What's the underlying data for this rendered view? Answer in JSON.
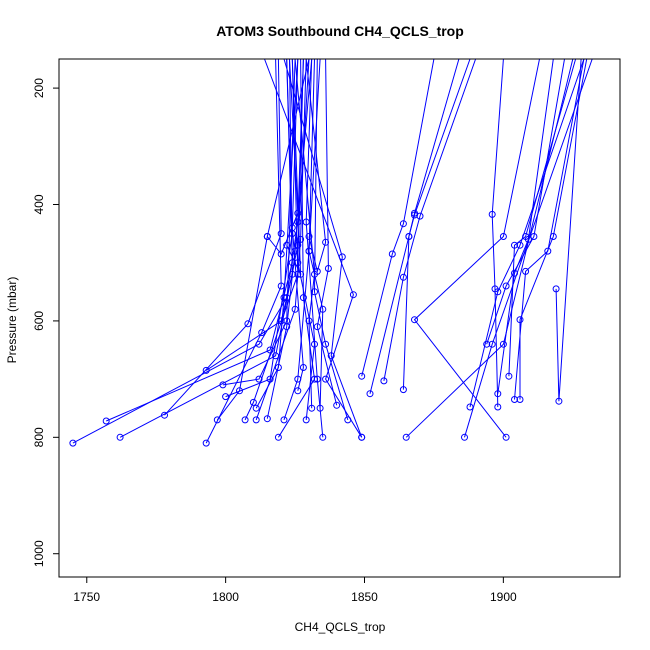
{
  "chart_data": {
    "type": "line",
    "title": "ATOM3 Southbound CH4_QCLS_trop",
    "xlabel": "CH4_QCLS_trop",
    "ylabel": "Pressure (mbar)",
    "xlim": [
      1740,
      1942
    ],
    "ylim": [
      1040,
      150
    ],
    "y_reversed": true,
    "x_ticks": [
      1750,
      1800,
      1850,
      1900
    ],
    "y_ticks": [
      200,
      400,
      600,
      800,
      1000
    ],
    "grid": false,
    "color": "#0000ff",
    "marker": "open-circle",
    "profiles": [
      [
        [
          1745,
          810
        ],
        [
          1812,
          640
        ],
        [
          1822,
          560
        ],
        [
          1826,
          430
        ],
        [
          1828,
          150
        ]
      ],
      [
        [
          1757,
          772
        ],
        [
          1816,
          650
        ],
        [
          1824,
          500
        ],
        [
          1822,
          150
        ]
      ],
      [
        [
          1762,
          800
        ],
        [
          1818,
          660
        ],
        [
          1826,
          470
        ],
        [
          1830,
          150
        ]
      ],
      [
        [
          1778,
          762
        ],
        [
          1808,
          605
        ],
        [
          1820,
          450
        ],
        [
          1819,
          150
        ]
      ],
      [
        [
          1793,
          810
        ],
        [
          1813,
          620
        ],
        [
          1820,
          540
        ],
        [
          1818,
          150
        ]
      ],
      [
        [
          1797,
          770
        ],
        [
          1805,
          720
        ],
        [
          1815,
          455
        ],
        [
          1830,
          150
        ]
      ],
      [
        [
          1799,
          710
        ],
        [
          1812,
          700
        ],
        [
          1822,
          600
        ],
        [
          1825,
          150
        ]
      ],
      [
        [
          1793,
          685
        ],
        [
          1820,
          600
        ],
        [
          1824,
          520
        ],
        [
          1823,
          150
        ]
      ],
      [
        [
          1800,
          730
        ],
        [
          1816,
          700
        ],
        [
          1824,
          450
        ],
        [
          1822,
          150
        ]
      ],
      [
        [
          1807,
          770
        ],
        [
          1810,
          740
        ],
        [
          1826,
          520
        ],
        [
          1824,
          150
        ]
      ],
      [
        [
          1811,
          750
        ],
        [
          1819,
          680
        ],
        [
          1821,
          560
        ],
        [
          1826,
          150
        ]
      ],
      [
        [
          1811,
          770
        ],
        [
          1825,
          580
        ],
        [
          1827,
          460
        ],
        [
          1829,
          150
        ]
      ],
      [
        [
          1815,
          768
        ],
        [
          1822,
          610
        ],
        [
          1825,
          480
        ],
        [
          1831,
          150
        ]
      ],
      [
        [
          1819,
          800
        ],
        [
          1832,
          700
        ],
        [
          1828,
          560
        ],
        [
          1827,
          150
        ]
      ],
      [
        [
          1821,
          770
        ],
        [
          1826,
          700
        ],
        [
          1830,
          480
        ],
        [
          1832,
          150
        ]
      ],
      [
        [
          1826,
          720
        ],
        [
          1828,
          680
        ],
        [
          1824,
          440
        ],
        [
          1826,
          150
        ]
      ],
      [
        [
          1829,
          770
        ],
        [
          1832,
          640
        ],
        [
          1826,
          500
        ],
        [
          1828,
          150
        ]
      ],
      [
        [
          1831,
          750
        ],
        [
          1830,
          600
        ],
        [
          1832,
          520
        ],
        [
          1825,
          150
        ]
      ],
      [
        [
          1834,
          750
        ],
        [
          1835,
          580
        ],
        [
          1830,
          480
        ],
        [
          1834,
          150
        ]
      ],
      [
        [
          1835,
          800
        ],
        [
          1833,
          700
        ],
        [
          1829,
          430
        ],
        [
          1831,
          150
        ]
      ],
      [
        [
          1840,
          745
        ],
        [
          1833,
          610
        ],
        [
          1837,
          510
        ],
        [
          1836,
          150
        ]
      ],
      [
        [
          1844,
          770
        ],
        [
          1836,
          640
        ],
        [
          1832,
          550
        ],
        [
          1833,
          150
        ]
      ],
      [
        [
          1849,
          800
        ],
        [
          1838,
          660
        ],
        [
          1842,
          490
        ],
        [
          1821,
          150
        ]
      ],
      [
        [
          1849,
          800
        ],
        [
          1836,
          700
        ],
        [
          1846,
          555
        ],
        [
          1814,
          150
        ]
      ],
      [
        [
          1849,
          695
        ],
        [
          1860,
          485
        ],
        [
          1864,
          433
        ],
        [
          1875,
          150
        ]
      ],
      [
        [
          1852,
          725
        ],
        [
          1866,
          455
        ],
        [
          1868,
          415
        ],
        [
          1884,
          150
        ]
      ],
      [
        [
          1857,
          703
        ],
        [
          1864,
          525
        ],
        [
          1870,
          420
        ],
        [
          1890,
          150
        ]
      ],
      [
        [
          1864,
          718
        ],
        [
          1866,
          455
        ],
        [
          1868,
          418
        ],
        [
          1888,
          150
        ]
      ],
      [
        [
          1865,
          800
        ],
        [
          1900,
          640
        ],
        [
          1925,
          150
        ]
      ],
      [
        [
          1886,
          800
        ],
        [
          1896,
          640
        ],
        [
          1932,
          150
        ]
      ],
      [
        [
          1888,
          748
        ],
        [
          1898,
          550
        ],
        [
          1906,
          470
        ],
        [
          1929,
          150
        ]
      ],
      [
        [
          1901,
          800
        ],
        [
          1868,
          598
        ],
        [
          1900,
          455
        ],
        [
          1913,
          150
        ]
      ],
      [
        [
          1898,
          748
        ],
        [
          1897,
          545
        ],
        [
          1896,
          417
        ],
        [
          1900,
          150
        ]
      ],
      [
        [
          1894,
          640
        ],
        [
          1901,
          540
        ],
        [
          1911,
          455
        ],
        [
          1922,
          150
        ]
      ],
      [
        [
          1898,
          725
        ],
        [
          1904,
          518
        ],
        [
          1909,
          460
        ],
        [
          1918,
          150
        ]
      ],
      [
        [
          1902,
          695
        ],
        [
          1904,
          470
        ],
        [
          1908,
          455
        ],
        [
          1926,
          150
        ]
      ],
      [
        [
          1904,
          735
        ],
        [
          1908,
          515
        ],
        [
          1916,
          480
        ],
        [
          1929,
          150
        ]
      ],
      [
        [
          1906,
          735
        ],
        [
          1906,
          598
        ],
        [
          1918,
          455
        ],
        [
          1930,
          150
        ]
      ],
      [
        [
          1919,
          545
        ],
        [
          1920,
          738
        ],
        [
          1928,
          150
        ]
      ],
      [
        [
          1815,
          455
        ],
        [
          1820,
          485
        ],
        [
          1826,
          415
        ],
        [
          1823,
          150
        ]
      ],
      [
        [
          1822,
          470
        ],
        [
          1827,
          520
        ],
        [
          1824,
          150
        ]
      ],
      [
        [
          1830,
          455
        ],
        [
          1833,
          515
        ],
        [
          1836,
          465
        ],
        [
          1829,
          150
        ]
      ]
    ]
  }
}
